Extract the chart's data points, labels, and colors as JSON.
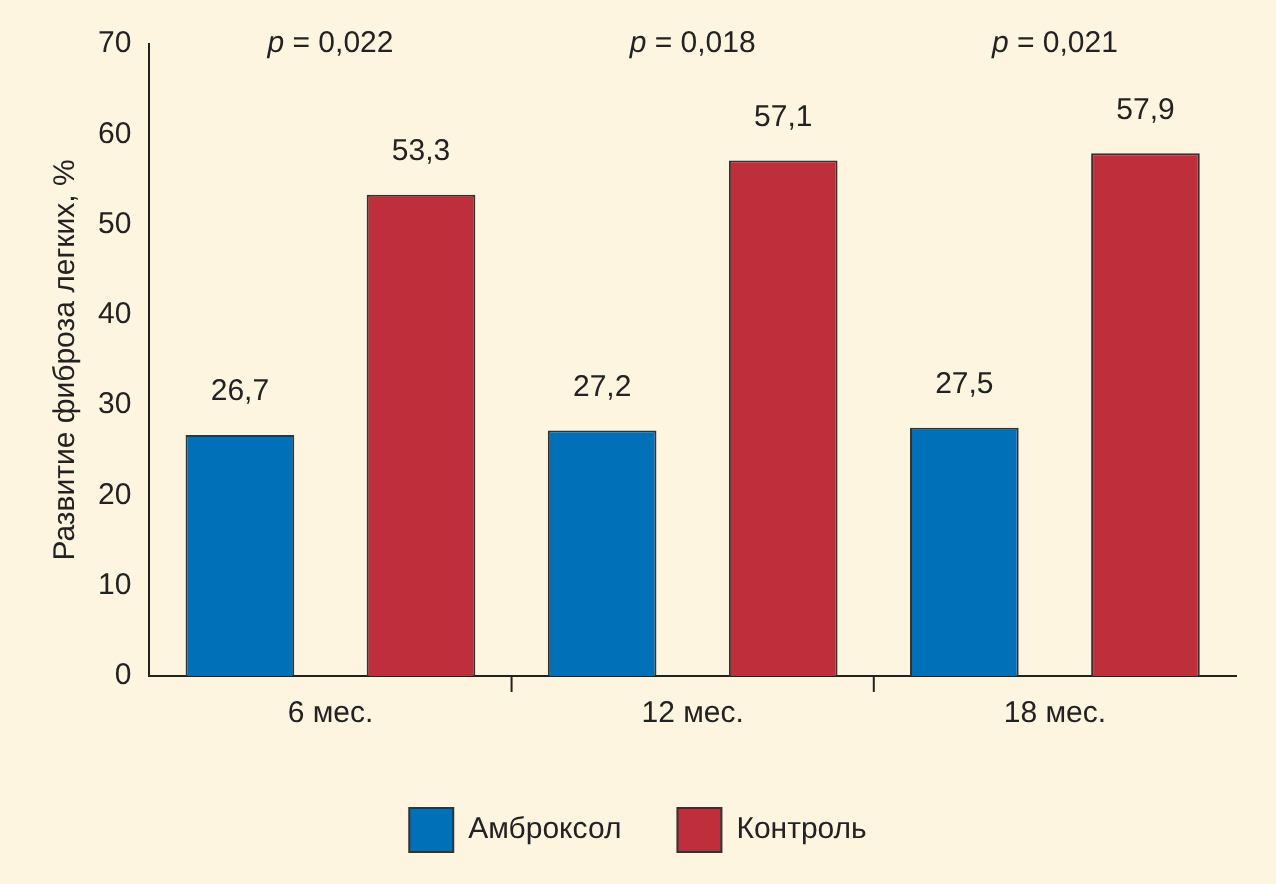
{
  "chart_data": {
    "type": "bar",
    "ylabel": "Развитие фиброза легких, %",
    "categories": [
      "6 мес.",
      "12 мес.",
      "18 мес."
    ],
    "series": [
      {
        "name": "Амброксол",
        "color": "#0070b8",
        "values": [
          26.7,
          27.2,
          27.5
        ],
        "value_labels": [
          "26,7",
          "27,2",
          "27,5"
        ]
      },
      {
        "name": "Контроль",
        "color": "#bf2f3b",
        "values": [
          53.3,
          57.1,
          57.9
        ],
        "value_labels": [
          "53,3",
          "57,1",
          "57,9"
        ]
      }
    ],
    "ylim": [
      0,
      70
    ],
    "yticks": [
      0,
      10,
      20,
      30,
      40,
      50,
      60,
      70
    ],
    "grid": false,
    "legend": "bottom",
    "annotations": [
      "p = 0,022",
      "p = 0,018",
      "p = 0,021"
    ]
  }
}
